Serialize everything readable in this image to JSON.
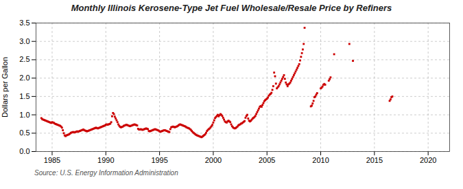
{
  "chart_data": {
    "type": "scatter",
    "title": "Monthly Illinois Kerosene-Type Jet Fuel Wholesale/Resale Price by Refiners",
    "ylabel": "Dollars per Gallon",
    "source": "Source: U.S. Energy Information Administration",
    "color": "#cc0000",
    "marker": "square",
    "grid": true,
    "xlim": [
      1983.5,
      2022
    ],
    "ylim": [
      0.0,
      3.5
    ],
    "xticks": [
      1985,
      1990,
      1995,
      2000,
      2005,
      2010,
      2015,
      2020
    ],
    "yticks": [
      {
        "value": 0.0,
        "label": "0.0"
      },
      0.5,
      {
        "value": 1.0,
        "label": "1.0"
      },
      1.5,
      {
        "value": 2.0,
        "label": "2.0"
      },
      2.5,
      {
        "value": 3.0,
        "label": "3.0"
      },
      3.5
    ],
    "x": [
      1984,
      1984.0833333333333,
      1984.1666666666667,
      1984.25,
      1984.3333333333333,
      1984.4166666666667,
      1984.5,
      1984.5833333333333,
      1984.6666666666667,
      1984.75,
      1984.8333333333333,
      1984.9166666666667,
      1985,
      1985.0833333333333,
      1985.1666666666667,
      1985.25,
      1985.3333333333333,
      1985.4166666666667,
      1985.5,
      1985.5833333333333,
      1985.6666666666667,
      1985.75,
      1985.8333333333333,
      1985.9166666666667,
      1986,
      1986.0833333333333,
      1986.1666666666667,
      1986.25,
      1986.3333333333333,
      1986.4166666666667,
      1986.5,
      1986.5833333333333,
      1986.6666666666667,
      1986.75,
      1986.8333333333333,
      1986.9166666666667,
      1987,
      1987.0833333333333,
      1987.1666666666667,
      1987.25,
      1987.3333333333333,
      1987.4166666666667,
      1987.5,
      1987.5833333333333,
      1987.6666666666667,
      1987.75,
      1987.8333333333333,
      1987.9166666666667,
      1988,
      1988.0833333333333,
      1988.1666666666667,
      1988.25,
      1988.3333333333333,
      1988.4166666666667,
      1988.5,
      1988.5833333333333,
      1988.6666666666667,
      1988.75,
      1988.8333333333333,
      1988.9166666666667,
      1989,
      1989.0833333333333,
      1989.1666666666667,
      1989.25,
      1989.3333333333333,
      1989.4166666666667,
      1989.5,
      1989.5833333333333,
      1989.6666666666667,
      1989.75,
      1989.8333333333333,
      1989.9166666666667,
      1990,
      1990.0833333333333,
      1990.1666666666667,
      1990.25,
      1990.3333333333333,
      1990.4166666666667,
      1990.5,
      1990.5833333333333,
      1990.6666666666667,
      1990.75,
      1990.8333333333333,
      1990.9166666666667,
      1991,
      1991.0833333333333,
      1991.1666666666667,
      1991.25,
      1991.3333333333333,
      1991.4166666666667,
      1991.5,
      1991.5833333333333,
      1991.6666666666667,
      1991.75,
      1991.8333333333333,
      1991.9166666666667,
      1992,
      1992.0833333333333,
      1992.1666666666667,
      1992.25,
      1992.3333333333333,
      1992.4166666666667,
      1992.5,
      1992.5833333333333,
      1992.6666666666667,
      1992.75,
      1992.8333333333333,
      1992.9166666666667,
      1993,
      1993.0833333333333,
      1993.1666666666667,
      1993.25,
      1993.3333333333333,
      1993.4166666666667,
      1993.5,
      1993.5833333333333,
      1993.6666666666667,
      1993.75,
      1993.8333333333333,
      1993.9166666666667,
      1994,
      1994.0833333333333,
      1994.1666666666667,
      1994.25,
      1994.3333333333333,
      1994.4166666666667,
      1994.5,
      1994.5833333333333,
      1994.6666666666667,
      1994.75,
      1994.8333333333333,
      1994.9166666666667,
      1995,
      1995.0833333333333,
      1995.1666666666667,
      1995.25,
      1995.3333333333333,
      1995.4166666666667,
      1995.5,
      1995.5833333333333,
      1995.6666666666667,
      1995.75,
      1995.8333333333333,
      1995.9166666666667,
      1996,
      1996.0833333333333,
      1996.1666666666667,
      1996.25,
      1996.3333333333333,
      1996.4166666666667,
      1996.5,
      1996.5833333333333,
      1996.6666666666667,
      1996.75,
      1996.8333333333333,
      1996.9166666666667,
      1997,
      1997.0833333333333,
      1997.1666666666667,
      1997.25,
      1997.3333333333333,
      1997.4166666666667,
      1997.5,
      1997.5833333333333,
      1997.6666666666667,
      1997.75,
      1997.8333333333333,
      1997.9166666666667,
      1998,
      1998.0833333333333,
      1998.1666666666667,
      1998.25,
      1998.3333333333333,
      1998.4166666666667,
      1998.5,
      1998.5833333333333,
      1998.6666666666667,
      1998.75,
      1998.8333333333333,
      1998.9166666666667,
      1999,
      1999.0833333333333,
      1999.1666666666667,
      1999.25,
      1999.3333333333333,
      1999.4166666666667,
      1999.5,
      1999.5833333333333,
      1999.6666666666667,
      1999.75,
      1999.8333333333333,
      1999.9166666666667,
      2000,
      2000.0833333333333,
      2000.1666666666667,
      2000.25,
      2000.3333333333333,
      2000.4166666666667,
      2000.5,
      2000.5833333333333,
      2000.6666666666667,
      2000.75,
      2000.8333333333333,
      2000.9166666666667,
      2001,
      2001.0833333333333,
      2001.1666666666667,
      2001.25,
      2001.3333333333333,
      2001.4166666666667,
      2001.5,
      2001.5833333333333,
      2001.6666666666667,
      2001.75,
      2001.8333333333333,
      2001.9166666666667,
      2002,
      2002.0833333333333,
      2002.1666666666667,
      2002.25,
      2002.3333333333333,
      2002.4166666666667,
      2002.5,
      2002.5833333333333,
      2002.6666666666667,
      2002.75,
      2002.8333333333333,
      2002.9166666666667,
      2003,
      2003.0833333333333,
      2003.1666666666667,
      2003.25,
      2003.3333333333333,
      2003.4166666666667,
      2003.5,
      2003.5833333333333,
      2003.6666666666667,
      2003.75,
      2003.8333333333333,
      2003.9166666666667,
      2004,
      2004.0833333333333,
      2004.1666666666667,
      2004.25,
      2004.3333333333333,
      2004.4166666666667,
      2004.5,
      2004.5833333333333,
      2004.6666666666667,
      2004.75,
      2004.8333333333333,
      2004.9166666666667,
      2005,
      2005.0833333333333,
      2005.1666666666667,
      2005.25,
      2005.3333333333333,
      2005.4166666666667,
      2005.5,
      2005.5833333333333,
      2005.6666666666667,
      2005.75,
      2005.8333333333333,
      2005.9166666666667,
      2006,
      2006.0833333333333,
      2006.1666666666667,
      2006.25,
      2006.3333333333333,
      2006.4166666666667,
      2006.5,
      2006.5833333333333,
      2006.6666666666667,
      2006.75,
      2006.8333333333333,
      2006.9166666666667,
      2007,
      2007.0833333333333,
      2007.1666666666667,
      2007.25,
      2007.3333333333333,
      2007.4166666666667,
      2007.5,
      2007.5833333333333,
      2007.6666666666667,
      2007.75,
      2007.8333333333333,
      2007.9166666666667,
      2008,
      2008.0833333333333,
      2008.1666666666667,
      2008.25,
      2008.3333333333333,
      2008.4166666666667,
      2008.5,
      2009.0833333333333,
      2009.1666666666667,
      2009.25,
      2009.3333333333333,
      2009.4166666666667,
      2009.5,
      2009.5833333333333,
      2009.6666666666667,
      2010,
      2010.0833333333333,
      2010.1666666666667,
      2010.25,
      2010.3333333333333,
      2010.4166666666667,
      2010.75,
      2010.8333333333333,
      2010.9166666666667,
      2011.25,
      2012.6666666666667,
      2013,
      2016.4166666666667,
      2016.5,
      2016.5833333333333,
      2016.6666666666667
    ],
    "values": [
      0.91,
      0.88,
      0.87,
      0.86,
      0.85,
      0.84,
      0.83,
      0.82,
      0.81,
      0.8,
      0.79,
      0.78,
      0.8,
      0.79,
      0.78,
      0.76,
      0.75,
      0.74,
      0.73,
      0.72,
      0.71,
      0.7,
      0.68,
      0.65,
      0.58,
      0.5,
      0.44,
      0.42,
      0.44,
      0.45,
      0.46,
      0.47,
      0.49,
      0.51,
      0.52,
      0.53,
      0.53,
      0.52,
      0.53,
      0.54,
      0.55,
      0.54,
      0.55,
      0.56,
      0.57,
      0.58,
      0.59,
      0.6,
      0.58,
      0.57,
      0.56,
      0.55,
      0.56,
      0.57,
      0.58,
      0.59,
      0.6,
      0.61,
      0.62,
      0.63,
      0.64,
      0.65,
      0.64,
      0.63,
      0.64,
      0.65,
      0.66,
      0.67,
      0.68,
      0.69,
      0.7,
      0.71,
      0.73,
      0.74,
      0.73,
      0.74,
      0.75,
      0.76,
      0.8,
      0.96,
      1.05,
      1.02,
      0.95,
      0.9,
      0.85,
      0.8,
      0.74,
      0.7,
      0.67,
      0.66,
      0.67,
      0.68,
      0.7,
      0.71,
      0.72,
      0.73,
      0.72,
      0.71,
      0.7,
      0.69,
      0.7,
      0.71,
      0.72,
      0.73,
      0.74,
      0.73,
      0.72,
      0.71,
      0.62,
      0.6,
      0.6,
      0.61,
      0.6,
      0.59,
      0.6,
      0.61,
      0.62,
      0.63,
      0.62,
      0.61,
      0.56,
      0.55,
      0.56,
      0.57,
      0.58,
      0.59,
      0.6,
      0.61,
      0.6,
      0.59,
      0.58,
      0.57,
      0.55,
      0.54,
      0.55,
      0.56,
      0.57,
      0.58,
      0.58,
      0.57,
      0.56,
      0.55,
      0.54,
      0.53,
      0.61,
      0.66,
      0.67,
      0.68,
      0.67,
      0.66,
      0.67,
      0.68,
      0.69,
      0.71,
      0.73,
      0.74,
      0.73,
      0.72,
      0.71,
      0.7,
      0.69,
      0.68,
      0.66,
      0.65,
      0.64,
      0.63,
      0.61,
      0.59,
      0.56,
      0.53,
      0.51,
      0.49,
      0.47,
      0.45,
      0.44,
      0.43,
      0.42,
      0.41,
      0.4,
      0.39,
      0.41,
      0.43,
      0.45,
      0.47,
      0.51,
      0.56,
      0.59,
      0.61,
      0.63,
      0.66,
      0.69,
      0.73,
      0.79,
      0.85,
      0.91,
      0.94,
      0.97,
      1.0,
      0.96,
      0.99,
      1.02,
      1.0,
      0.97,
      0.92,
      0.87,
      0.82,
      0.8,
      0.79,
      0.82,
      0.84,
      0.82,
      0.8,
      0.74,
      0.69,
      0.66,
      0.64,
      0.63,
      0.64,
      0.66,
      0.68,
      0.71,
      0.73,
      0.74,
      0.76,
      0.77,
      0.79,
      0.81,
      0.83,
      0.92,
      0.97,
      1.0,
      0.9,
      0.84,
      0.82,
      0.84,
      0.87,
      0.9,
      0.92,
      0.94,
      0.97,
      1.02,
      1.07,
      1.12,
      1.17,
      1.22,
      1.24,
      1.22,
      1.27,
      1.32,
      1.37,
      1.4,
      1.42,
      1.44,
      1.47,
      1.52,
      1.55,
      1.57,
      1.6,
      1.68,
      1.78,
      2.15,
      2.05,
      1.85,
      1.72,
      1.75,
      1.78,
      1.83,
      1.88,
      1.93,
      1.98,
      2.03,
      2.08,
      1.98,
      1.88,
      1.83,
      1.78,
      1.83,
      1.85,
      1.88,
      1.93,
      1.98,
      2.03,
      2.08,
      2.13,
      2.18,
      2.23,
      2.28,
      2.33,
      2.38,
      2.48,
      2.58,
      2.68,
      2.78,
      2.93,
      3.37,
      1.23,
      1.25,
      1.31,
      1.38,
      1.48,
      1.5,
      1.55,
      1.59,
      1.72,
      1.74,
      1.77,
      1.82,
      1.84,
      1.82,
      1.93,
      1.97,
      2.02,
      2.65,
      2.93,
      2.47,
      1.38,
      1.42,
      1.48,
      1.5
    ]
  }
}
